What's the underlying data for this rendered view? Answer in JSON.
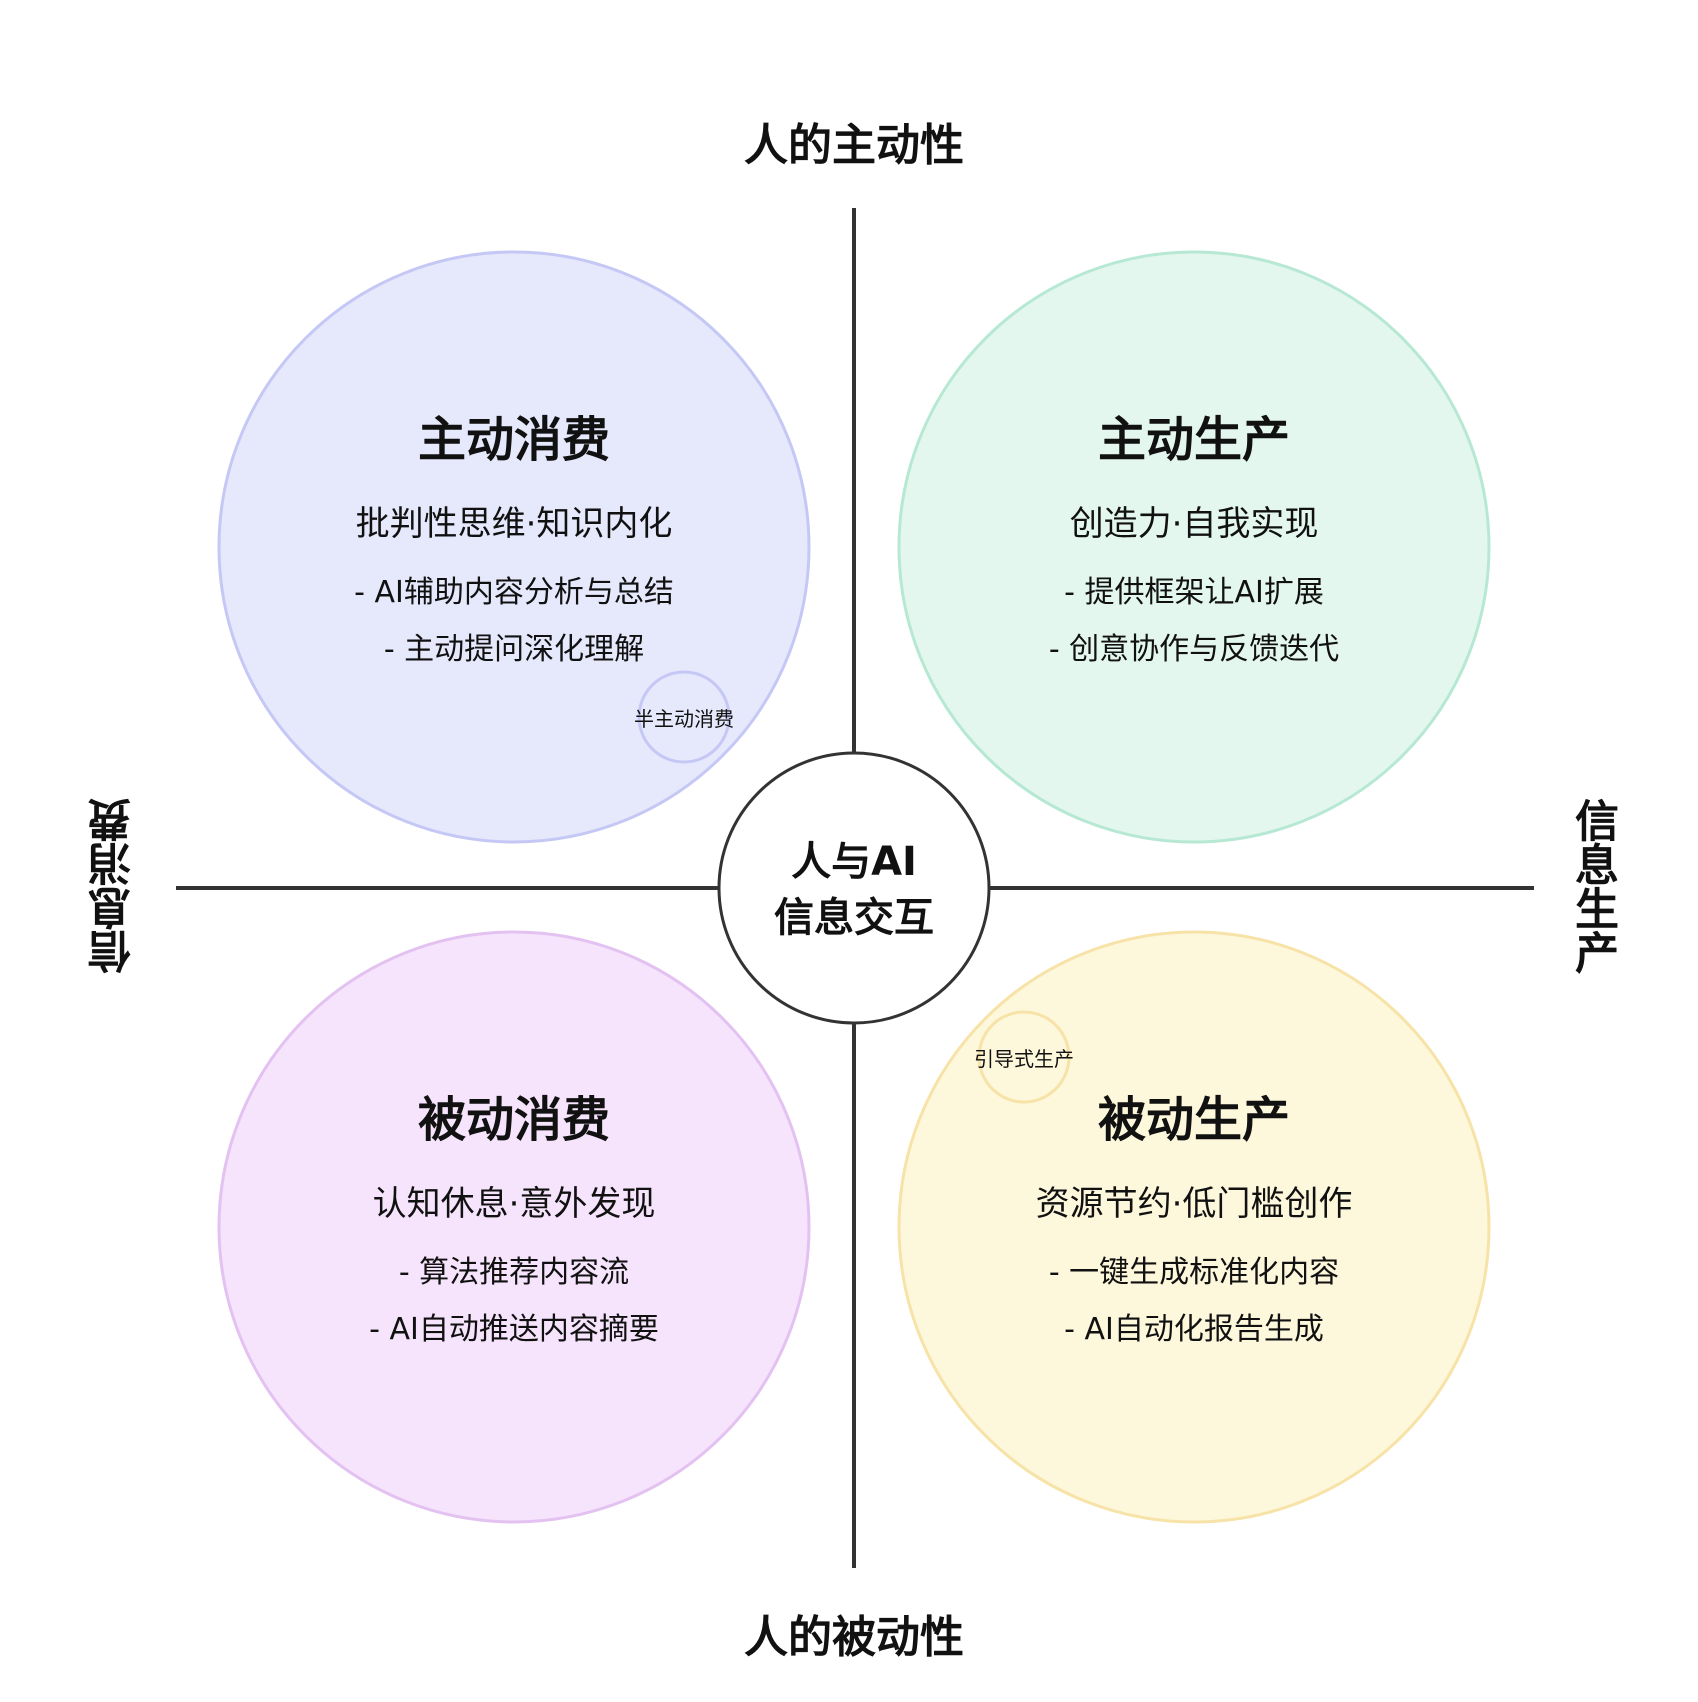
{
  "axes": {
    "top": "人的主动性",
    "bottom": "人的被动性",
    "left": "信息消费",
    "right": "信息生产"
  },
  "center": {
    "line1": "人与AI",
    "line2": "信息交互"
  },
  "quadrants": {
    "active_consumption": {
      "title": "主动消费",
      "subtitle": "批判性思维·知识内化",
      "items": [
        "- AI辅助内容分析与总结",
        "- 主动提问深化理解"
      ],
      "fill": "#e6e8fc",
      "stroke": "#c5c8f5"
    },
    "active_production": {
      "title": "主动生产",
      "subtitle": "创造力·自我实现",
      "items": [
        "- 提供框架让AI扩展",
        "- 创意协作与反馈迭代"
      ],
      "fill": "#e3f7ef",
      "stroke": "#b6e8d4"
    },
    "passive_consumption": {
      "title": "被动消费",
      "subtitle": "认知休息·意外发现",
      "items": [
        "- 算法推荐内容流",
        "- AI自动推送内容摘要"
      ],
      "fill": "#f5e4fb",
      "stroke": "#e3c2f2"
    },
    "passive_production": {
      "title": "被动生产",
      "subtitle": "资源节约·低门槛创作",
      "items": [
        "- 一键生成标准化内容",
        "- AI自动化报告生成"
      ],
      "fill": "#fdf7dc",
      "stroke": "#f7e3a8"
    }
  },
  "transitions": {
    "semi_active_consumption": "半主动消费",
    "guided_production": "引导式生产"
  },
  "colors": {
    "axis": "#333333",
    "center_stroke": "#333333"
  }
}
